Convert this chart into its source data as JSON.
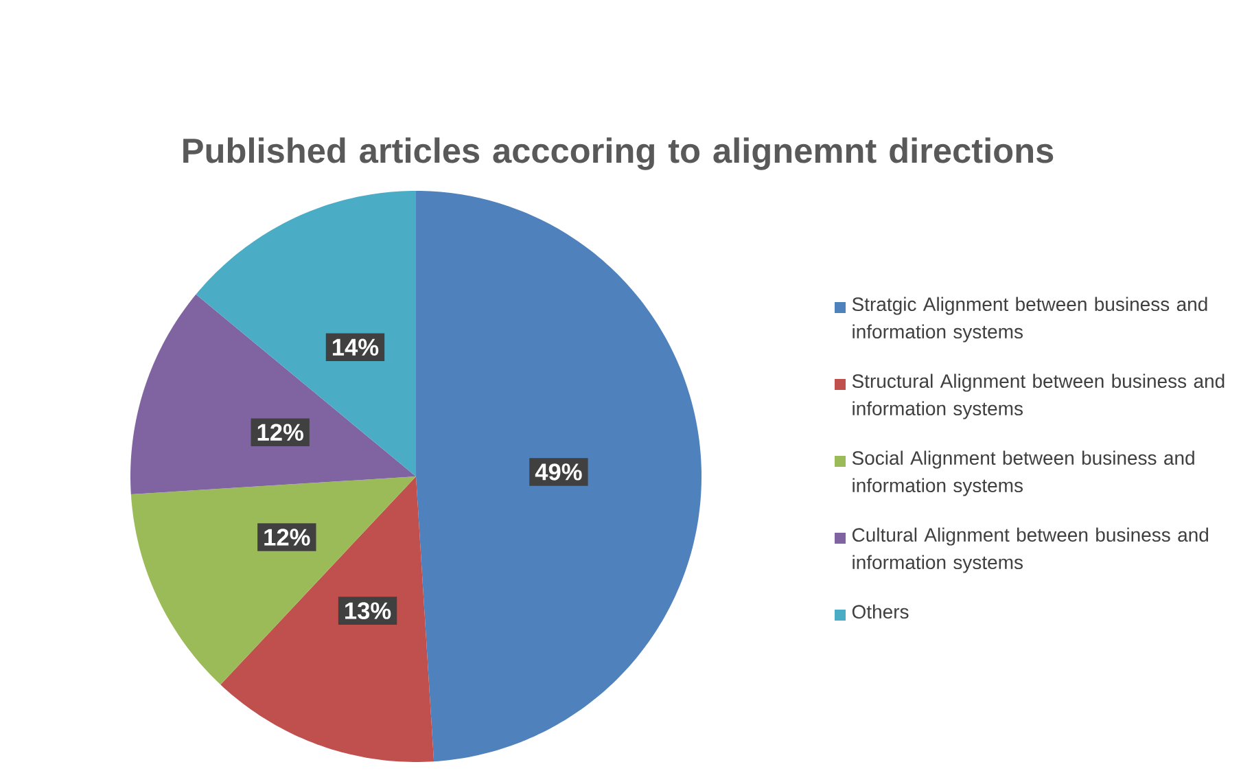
{
  "chart_data": {
    "type": "pie",
    "title": "Published articles acccoring to alignemnt directions",
    "categories": [
      "Stratgic Alignment between business and information systems",
      "Structural Alignment between business and information systems",
      "Social Alignment between business and information systems",
      "Cultural Alignment between business and information systems",
      "Others"
    ],
    "values": [
      49,
      13,
      12,
      12,
      14
    ],
    "value_labels": [
      "49%",
      "13%",
      "12%",
      "12%",
      "14%"
    ],
    "colors": [
      "#4f81bd",
      "#c0504d",
      "#9bbb59",
      "#8064a2",
      "#4bacc6"
    ],
    "legend": "right"
  }
}
